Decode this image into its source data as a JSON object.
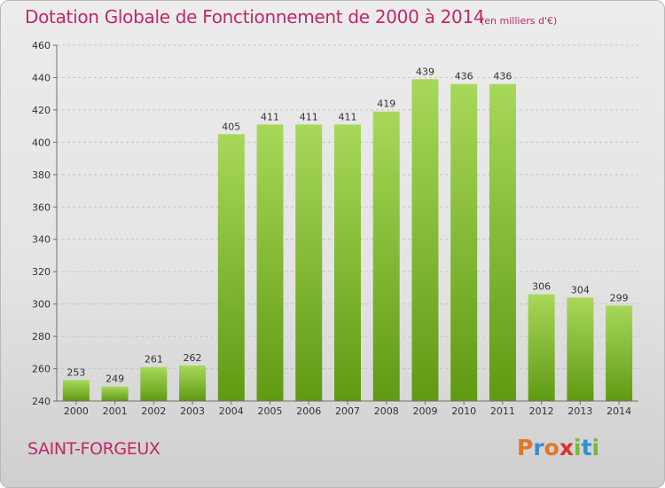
{
  "title": "Dotation Globale de Fonctionnement de 2000 à 2014",
  "unit": "(en milliers d'€)",
  "commune": "SAINT-FORGEUX",
  "logo": {
    "letters": [
      "P",
      "r",
      "o",
      "x",
      "i",
      "t",
      "i"
    ],
    "colors": [
      "#e4742a",
      "#2f8fd3",
      "#e4742a",
      "#d9332b",
      "#79b83a",
      "#2f8fd3",
      "#79b83a"
    ]
  },
  "colors": {
    "title": "#c0286a",
    "bar_top": "#a8d85a",
    "bar_bottom": "#5f9a12",
    "grid": "#c8c8c8",
    "axis": "#707070",
    "label": "#333333"
  },
  "chart_data": {
    "type": "bar",
    "categories": [
      "2000",
      "2001",
      "2002",
      "2003",
      "2004",
      "2005",
      "2006",
      "2007",
      "2008",
      "2009",
      "2010",
      "2011",
      "2012",
      "2013",
      "2014"
    ],
    "values": [
      253,
      249,
      261,
      262,
      405,
      411,
      411,
      411,
      419,
      439,
      436,
      436,
      306,
      304,
      299
    ],
    "ylim": [
      240,
      460
    ],
    "yticks": [
      240,
      260,
      280,
      300,
      320,
      340,
      360,
      380,
      400,
      420,
      440,
      460
    ],
    "grid": true,
    "data_labels": true,
    "title": "Dotation Globale de Fonctionnement de 2000 à 2014",
    "xlabel": "",
    "ylabel": ""
  }
}
